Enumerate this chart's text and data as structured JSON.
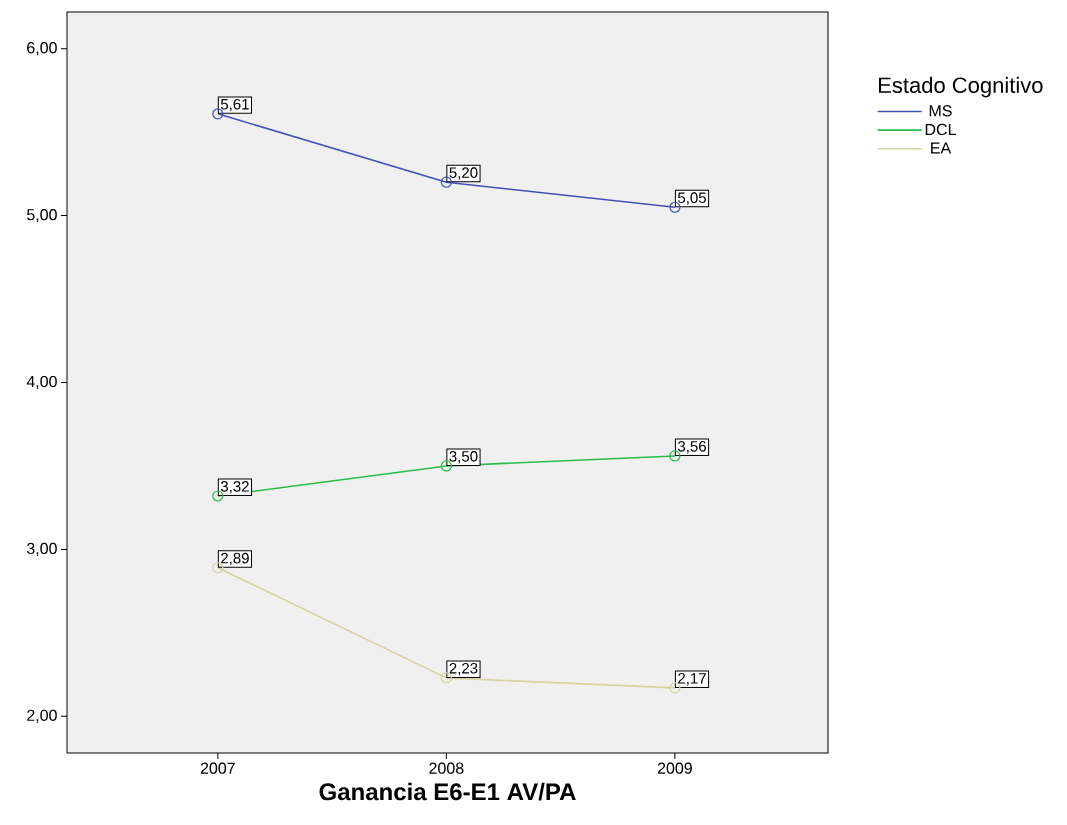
{
  "chart_data": {
    "type": "line",
    "xlabel": "Ganancia E6-E1 AV/PA",
    "legend_title": "Estado Cognitivo",
    "x": [
      2007,
      2008,
      2009
    ],
    "series": [
      {
        "name": "MS",
        "color": "#3f51b5",
        "values": [
          5.61,
          5.2,
          5.05
        ],
        "value_labels": [
          "5,61",
          "5,20",
          "5,05"
        ]
      },
      {
        "name": "DCL",
        "color": "#2cbb4a",
        "values": [
          3.32,
          3.5,
          3.56
        ],
        "value_labels": [
          "3,32",
          "3,50",
          "3,56"
        ]
      },
      {
        "name": "EA",
        "color": "#d6d29e",
        "values": [
          2.89,
          2.23,
          2.17
        ],
        "value_labels": [
          "2,89",
          "2,23",
          "2,17"
        ]
      }
    ],
    "xlim": [
      2006.34,
      2009.67
    ],
    "ylim": [
      1.78,
      6.22
    ],
    "xticks": [
      2007,
      2008,
      2009
    ],
    "yticks": [
      {
        "value": 2,
        "label": "2,00"
      },
      {
        "value": 3,
        "label": "3,00"
      },
      {
        "value": 4,
        "label": "4,00"
      },
      {
        "value": 5,
        "label": "5,00"
      },
      {
        "value": 6,
        "label": "6,00"
      }
    ],
    "grid": false,
    "legend": "right",
    "marker": "circle",
    "line_style": "solid"
  }
}
